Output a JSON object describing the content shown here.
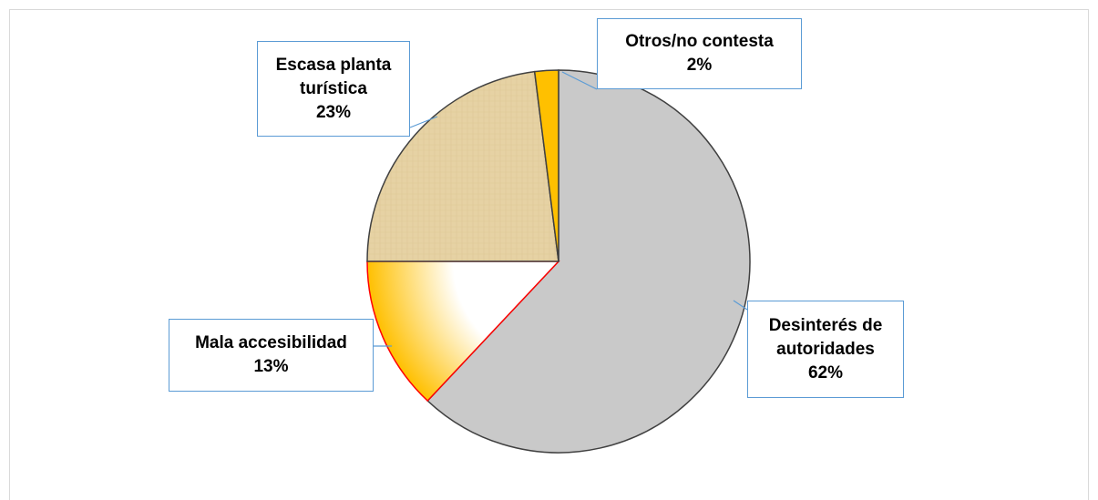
{
  "chart_data": {
    "type": "pie",
    "categories": [
      "Desinterés de autoridades",
      "Mala accesibilidad",
      "Escasa planta turística",
      "Otros/no contesta"
    ],
    "values": [
      62,
      13,
      23,
      2
    ],
    "value_labels": [
      "62%",
      "13%",
      "23%",
      "2%"
    ],
    "colors": [
      "#c9c9c9",
      "#ffc000",
      "#e6d2a4",
      "#ffc000"
    ]
  }
}
